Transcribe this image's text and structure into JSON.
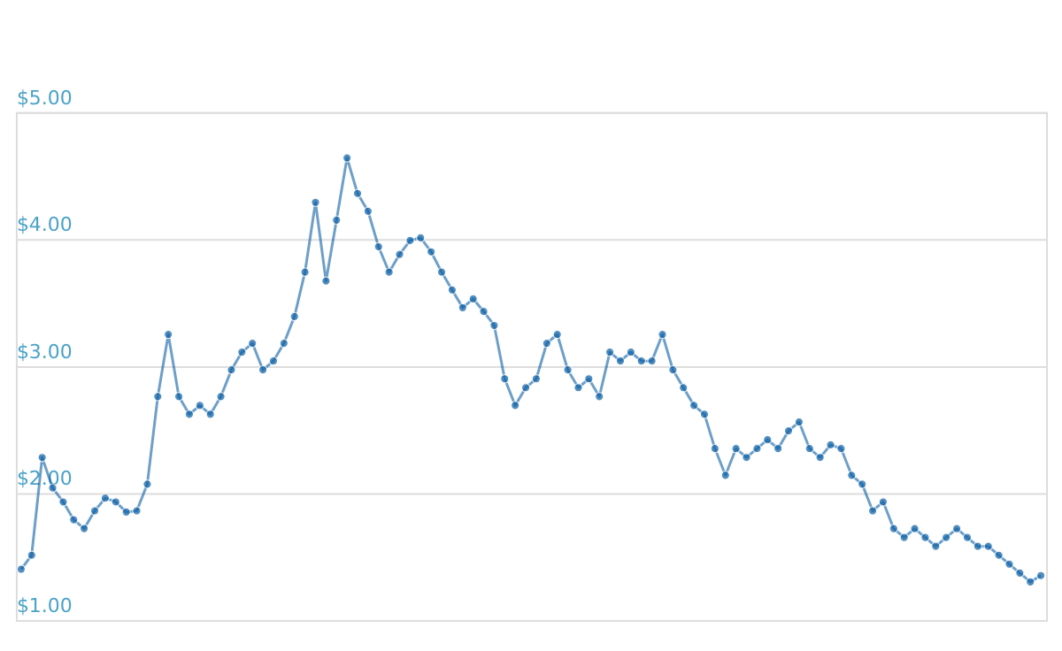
{
  "chart_data": {
    "type": "line",
    "marker": "circle",
    "line_style": "solid",
    "grid": "y",
    "tick_labels": "y",
    "categories": [
      null,
      null,
      null,
      null,
      null,
      null,
      null,
      null,
      null,
      null,
      null,
      null,
      null,
      null,
      null,
      null,
      null,
      null,
      null,
      null,
      null,
      null,
      null,
      null,
      null,
      null,
      null,
      null,
      null,
      null,
      null,
      null,
      null,
      null,
      null,
      null,
      null,
      null,
      null,
      null,
      null,
      null,
      null,
      null,
      null,
      null,
      null,
      null,
      null,
      null,
      null,
      null,
      null,
      null,
      null,
      null,
      null,
      null,
      null,
      null,
      null,
      null,
      null,
      null,
      null,
      null,
      null,
      null,
      null,
      null,
      null,
      null,
      null,
      null,
      null,
      null,
      null,
      null,
      null,
      null,
      null,
      null,
      null,
      null,
      null,
      null,
      null,
      null,
      null,
      null,
      null,
      null,
      null,
      null,
      null,
      null,
      null,
      null
    ],
    "series": [
      {
        "color": "#0b5fa5",
        "values": [
          1.4,
          1.51,
          2.28,
          2.04,
          1.93,
          1.79,
          1.72,
          1.86,
          1.96,
          1.93,
          1.85,
          1.86,
          2.07,
          2.76,
          3.25,
          2.76,
          2.62,
          2.69,
          2.62,
          2.76,
          2.97,
          3.11,
          3.18,
          2.97,
          3.04,
          3.18,
          3.39,
          3.74,
          4.29,
          3.67,
          4.15,
          4.64,
          4.36,
          4.22,
          3.94,
          3.74,
          3.88,
          3.99,
          4.01,
          3.9,
          3.74,
          3.6,
          3.46,
          3.53,
          3.43,
          3.32,
          2.9,
          2.69,
          2.83,
          2.9,
          3.18,
          3.25,
          2.97,
          2.83,
          2.9,
          2.76,
          3.11,
          3.04,
          3.11,
          3.04,
          3.04,
          3.25,
          2.97,
          2.83,
          2.69,
          2.62,
          2.35,
          2.14,
          2.35,
          2.28,
          2.35,
          2.42,
          2.35,
          2.49,
          2.56,
          2.35,
          2.28,
          2.38,
          2.35,
          2.14,
          2.07,
          1.86,
          1.93,
          1.72,
          1.65,
          1.72,
          1.65,
          1.58,
          1.65,
          1.72,
          1.65,
          1.58,
          1.58,
          1.51,
          1.44,
          1.37,
          1.3,
          1.35
        ]
      }
    ],
    "ylim": [
      1,
      5
    ],
    "yticks": [
      {
        "value": 1,
        "label": "$1.00"
      },
      {
        "value": 2,
        "label": "$2.00"
      },
      {
        "value": 3,
        "label": "$3.00"
      },
      {
        "value": 4,
        "label": "$4.00"
      },
      {
        "value": 5,
        "label": "$5.00"
      }
    ]
  }
}
